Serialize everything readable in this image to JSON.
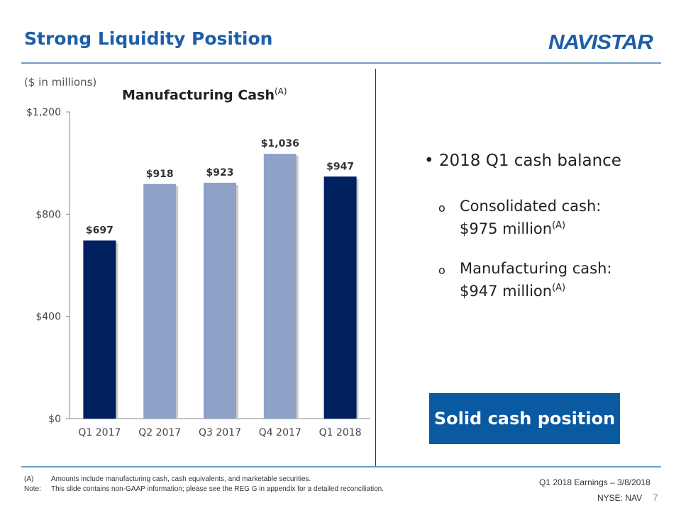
{
  "header": {
    "title": "Strong Liquidity Position",
    "logo_text": "NAVISTAR"
  },
  "units": "($ in millions)",
  "chart_data": {
    "type": "bar",
    "title": "Manufacturing Cash",
    "title_superscript": "(A)",
    "categories": [
      "Q1 2017",
      "Q2 2017",
      "Q3 2017",
      "Q4 2017",
      "Q1 2018"
    ],
    "values": [
      697,
      918,
      923,
      1036,
      947
    ],
    "data_labels": [
      "$697",
      "$918",
      "$923",
      "$1,036",
      "$947"
    ],
    "ylim": [
      0,
      1200
    ],
    "yticks": [
      0,
      400,
      800,
      1200
    ],
    "ytick_labels": [
      "$0",
      "$400",
      "$800",
      "$1,200"
    ],
    "bar_colors": [
      "#002060",
      "#8EA2C8",
      "#8EA2C8",
      "#8EA2C8",
      "#002060"
    ],
    "grid": false,
    "xlabel": "",
    "ylabel": ""
  },
  "bullets": {
    "main": "2018 Q1 cash balance",
    "items": [
      {
        "line1": "Consolidated cash:",
        "line2": "$975 million",
        "sup": "(A)"
      },
      {
        "line1": "Manufacturing cash:",
        "line2": "$947 million",
        "sup": "(A)"
      }
    ]
  },
  "callout": "Solid cash position",
  "footer": {
    "note_a_label": "(A)",
    "note_a": "Amounts include manufacturing cash, cash equivalents, and marketable securities.",
    "note_label": "Note:",
    "note": "This slide contains non-GAAP information; please see the REG G in appendix for a detailed reconciliation.",
    "event": "Q1 2018 Earnings – 3/8/2018",
    "ticker": "NYSE: NAV",
    "page": "7"
  }
}
